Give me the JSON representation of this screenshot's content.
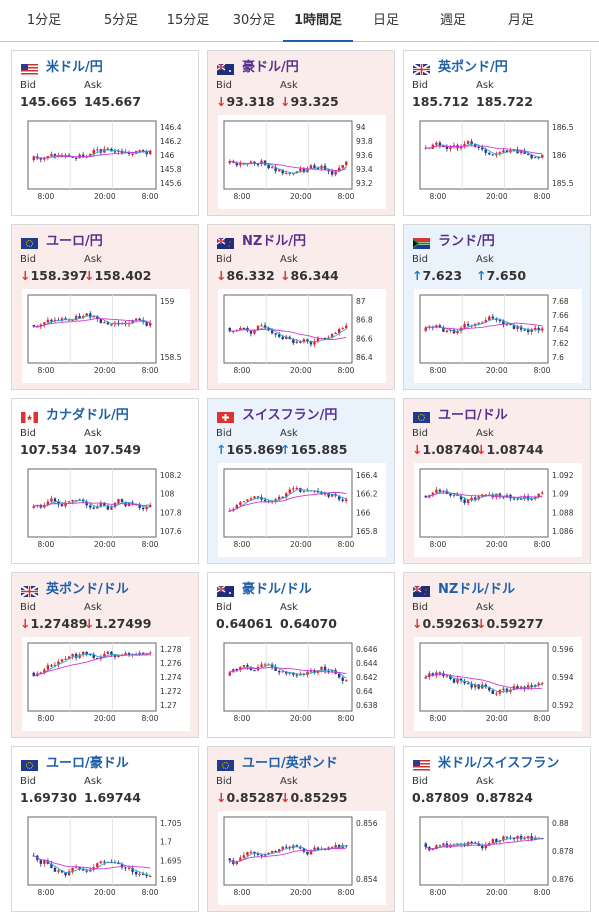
{
  "tabs": [
    {
      "label": "1分足",
      "active": false
    },
    {
      "label": "5分足",
      "active": false
    },
    {
      "label": "15分足",
      "active": false
    },
    {
      "label": "30分足",
      "active": false
    },
    {
      "label": "1時間足",
      "active": true
    },
    {
      "label": "日足",
      "active": false
    },
    {
      "label": "週足",
      "active": false
    },
    {
      "label": "月足",
      "active": false
    }
  ],
  "colors": {
    "up_candle": "#d9262b",
    "down_candle": "#1b3a8c",
    "ma_short": "#2fa8c8",
    "ma_long": "#d13ad6",
    "down_bg": "#fbecec",
    "up_bg": "#eaf3fb",
    "active_tab": "#1f5fa8"
  },
  "labels": {
    "bid": "Bid",
    "ask": "Ask"
  },
  "x_ticks": [
    "8:00",
    "20:00",
    "8:00"
  ],
  "cards": [
    {
      "pair": "米ドル/円",
      "flag": "us-flag",
      "trend": "neutral",
      "bid": "145.665",
      "ask": "145.667",
      "yticks": [
        "146.4",
        "146.2",
        "146",
        "145.8",
        "145.6"
      ]
    },
    {
      "pair": "豪ドル/円",
      "flag": "au-flag",
      "trend": "down",
      "bid": "93.318",
      "ask": "93.325",
      "yticks": [
        "94",
        "93.8",
        "93.6",
        "93.4",
        "93.2"
      ]
    },
    {
      "pair": "英ポンド/円",
      "flag": "gb-flag",
      "trend": "neutral",
      "bid": "185.712",
      "ask": "185.722",
      "yticks": [
        "186.5",
        "186",
        "185.5"
      ]
    },
    {
      "pair": "ユーロ/円",
      "flag": "eu-flag",
      "trend": "down",
      "bid": "158.397",
      "ask": "158.402",
      "yticks": [
        "159",
        "158.5"
      ]
    },
    {
      "pair": "NZドル/円",
      "flag": "nz-flag",
      "trend": "down",
      "bid": "86.332",
      "ask": "86.344",
      "yticks": [
        "87",
        "86.8",
        "86.6",
        "86.4"
      ]
    },
    {
      "pair": "ランド/円",
      "flag": "za-flag",
      "trend": "up",
      "bid": "7.623",
      "ask": "7.650",
      "yticks": [
        "7.68",
        "7.66",
        "7.64",
        "7.62",
        "7.6"
      ]
    },
    {
      "pair": "カナダドル/円",
      "flag": "ca-flag",
      "trend": "neutral",
      "bid": "107.534",
      "ask": "107.549",
      "yticks": [
        "108.2",
        "108",
        "107.8",
        "107.6"
      ]
    },
    {
      "pair": "スイスフラン/円",
      "flag": "ch-flag",
      "trend": "up",
      "bid": "165.869",
      "ask": "165.885",
      "yticks": [
        "166.4",
        "166.2",
        "166",
        "165.8"
      ]
    },
    {
      "pair": "ユーロ/ドル",
      "flag": "eu-flag",
      "trend": "down",
      "bid": "1.08740",
      "ask": "1.08744",
      "yticks": [
        "1.092",
        "1.09",
        "1.088",
        "1.086"
      ]
    },
    {
      "pair": "英ポンド/ドル",
      "flag": "gb-flag",
      "trend": "down",
      "bid": "1.27489",
      "ask": "1.27499",
      "yticks": [
        "1.278",
        "1.276",
        "1.274",
        "1.272",
        "1.27"
      ]
    },
    {
      "pair": "豪ドル/ドル",
      "flag": "au-flag",
      "trend": "neutral",
      "bid": "0.64061",
      "ask": "0.64070",
      "yticks": [
        "0.646",
        "0.644",
        "0.642",
        "0.64",
        "0.638"
      ]
    },
    {
      "pair": "NZドル/ドル",
      "flag": "nz-flag",
      "trend": "down",
      "bid": "0.59263",
      "ask": "0.59277",
      "yticks": [
        "0.596",
        "0.594",
        "0.592"
      ]
    },
    {
      "pair": "ユーロ/豪ドル",
      "flag": "eu-flag",
      "trend": "neutral",
      "bid": "1.69730",
      "ask": "1.69744",
      "yticks": [
        "1.705",
        "1.7",
        "1.695",
        "1.69"
      ]
    },
    {
      "pair": "ユーロ/英ポンド",
      "flag": "eu-flag",
      "trend": "down",
      "bid": "0.85287",
      "ask": "0.85295",
      "yticks": [
        "0.856",
        "0.854"
      ]
    },
    {
      "pair": "米ドル/スイスフラン",
      "flag": "us-flag",
      "trend": "neutral",
      "bid": "0.87809",
      "ask": "0.87824",
      "yticks": [
        "0.88",
        "0.878",
        "0.876"
      ]
    }
  ]
}
